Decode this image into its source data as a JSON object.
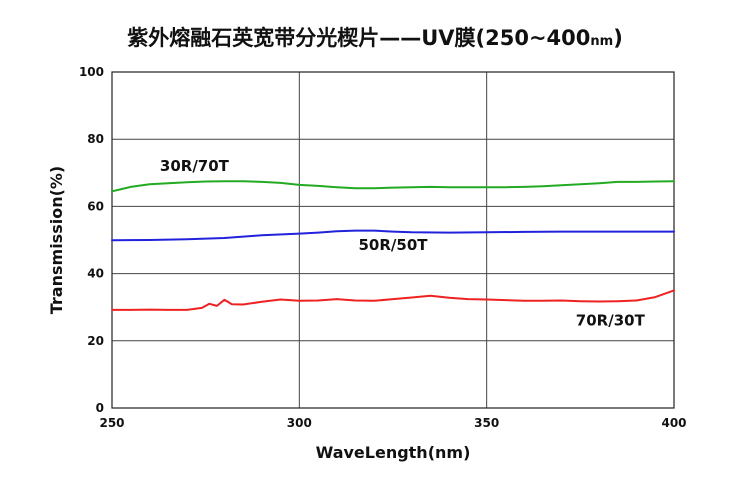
{
  "title": {
    "main": "紫外熔融石英宽带分光楔片——UV膜(250~400",
    "unit": "nm",
    "close": ")"
  },
  "chart_data": {
    "type": "line",
    "xlabel": "WaveLength(nm)",
    "ylabel": "Transmission(%)",
    "xlim": [
      250,
      400
    ],
    "ylim": [
      0,
      100
    ],
    "xticks": [
      "250",
      "300",
      "350",
      "400"
    ],
    "yticks": [
      "0",
      "20",
      "40",
      "60",
      "80",
      "100"
    ],
    "grid": true,
    "series": [
      {
        "name": "30R/70T",
        "color": "#22aa22",
        "x": [
          250,
          255,
          260,
          265,
          270,
          275,
          280,
          285,
          290,
          295,
          300,
          305,
          310,
          315,
          320,
          325,
          330,
          335,
          340,
          345,
          350,
          355,
          360,
          365,
          370,
          375,
          380,
          385,
          390,
          395,
          400
        ],
        "y": [
          64.5,
          65.8,
          66.6,
          66.9,
          67.2,
          67.4,
          67.5,
          67.5,
          67.3,
          67.0,
          66.4,
          66.1,
          65.7,
          65.4,
          65.4,
          65.6,
          65.7,
          65.8,
          65.7,
          65.7,
          65.7,
          65.7,
          65.8,
          66.0,
          66.3,
          66.6,
          66.9,
          67.3,
          67.3,
          67.4,
          67.5
        ]
      },
      {
        "name": "50R/50T",
        "color": "#2222dd",
        "x": [
          250,
          260,
          270,
          280,
          285,
          290,
          300,
          305,
          310,
          315,
          320,
          325,
          330,
          340,
          350,
          360,
          370,
          380,
          390,
          400
        ],
        "y": [
          49.9,
          50.0,
          50.2,
          50.6,
          51.0,
          51.4,
          51.9,
          52.2,
          52.6,
          52.8,
          52.8,
          52.5,
          52.3,
          52.2,
          52.3,
          52.4,
          52.5,
          52.5,
          52.5,
          52.5
        ]
      },
      {
        "name": "70R/30T",
        "color": "#ee2222",
        "x": [
          250,
          255,
          260,
          265,
          270,
          274,
          276,
          278,
          280,
          282,
          285,
          290,
          295,
          300,
          305,
          310,
          315,
          320,
          325,
          330,
          335,
          340,
          345,
          350,
          355,
          360,
          365,
          370,
          375,
          380,
          385,
          390,
          395,
          400
        ],
        "y": [
          29.2,
          29.2,
          29.3,
          29.2,
          29.2,
          29.8,
          31.0,
          30.4,
          32.2,
          30.9,
          30.8,
          31.6,
          32.3,
          31.9,
          32.0,
          32.4,
          32.0,
          31.9,
          32.4,
          32.9,
          33.4,
          32.8,
          32.4,
          32.3,
          32.1,
          31.9,
          31.9,
          32.0,
          31.8,
          31.7,
          31.8,
          32.0,
          33.0,
          35.0
        ]
      }
    ],
    "annotations": [
      {
        "text": "30R/70T",
        "x": 272,
        "y": 70.5
      },
      {
        "text": "50R/50T",
        "x": 325,
        "y": 47
      },
      {
        "text": "70R/30T",
        "x": 383,
        "y": 24.5
      }
    ]
  }
}
